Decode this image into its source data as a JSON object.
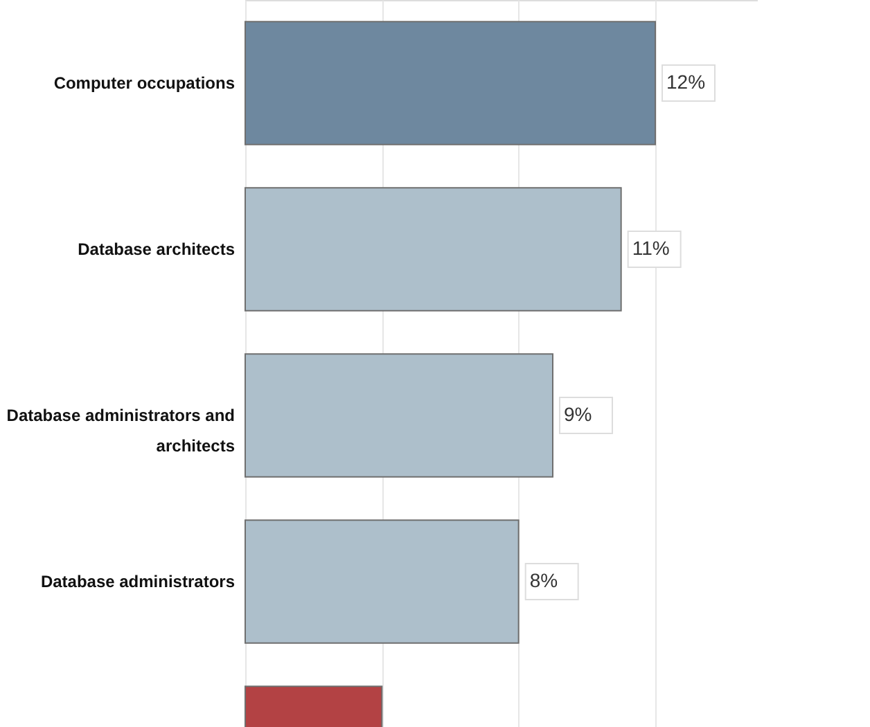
{
  "chart_data": {
    "type": "bar",
    "orientation": "horizontal",
    "categories": [
      "Computer occupations",
      "Database architects",
      "Database administrators and architects",
      "Database administrators",
      null
    ],
    "values": [
      12,
      11,
      9,
      8,
      4
    ],
    "colors": [
      "#6e889f",
      "#adbfcb",
      "#adbfcb",
      "#adbfcb",
      "#b34244"
    ],
    "value_labels": [
      "12%",
      "11%",
      "9%",
      "8%",
      null
    ],
    "xlim": [
      0,
      15
    ],
    "xticks": [
      {
        "value": 0,
        "label": null
      },
      {
        "value": 4,
        "label": null
      },
      {
        "value": 8,
        "label": null
      },
      {
        "value": 12,
        "label": null
      }
    ],
    "grid": "x"
  }
}
